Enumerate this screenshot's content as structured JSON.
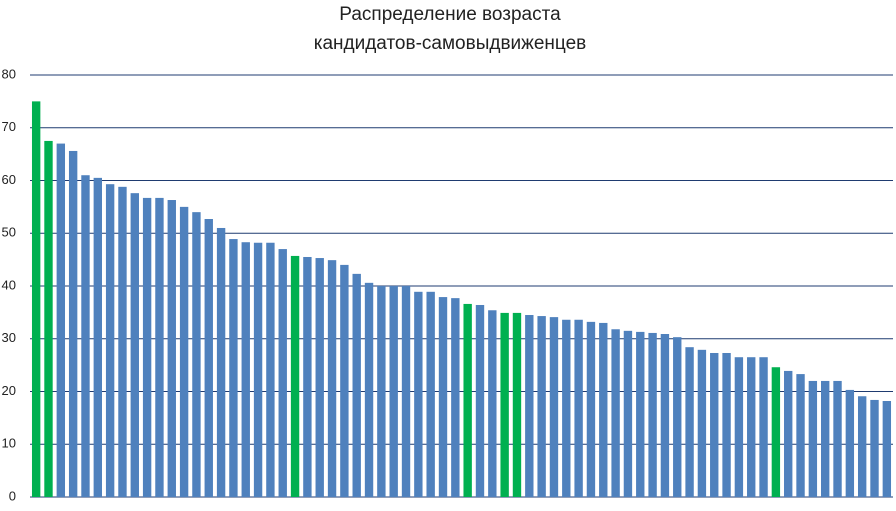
{
  "chart_data": {
    "type": "bar",
    "title": [
      "Распределение возраста",
      "кандидатов-самовыдвиженцев"
    ],
    "categories": [
      null,
      null,
      null,
      null,
      null,
      null,
      null,
      null,
      null,
      null,
      null,
      null,
      null,
      null,
      null,
      null,
      null,
      null,
      null,
      null,
      null,
      null,
      null,
      null,
      null,
      null,
      null,
      null,
      null,
      null,
      null,
      null,
      null,
      null,
      null,
      null,
      null,
      null,
      null,
      null,
      null,
      null,
      null,
      null,
      null,
      null,
      null,
      null,
      null,
      null,
      null,
      null,
      null,
      null,
      null,
      null,
      null,
      null,
      null,
      null,
      null,
      null,
      null,
      null,
      null,
      null,
      null,
      null,
      null,
      null
    ],
    "values": [
      75,
      67.5,
      67,
      65.6,
      61,
      60.5,
      59.3,
      58.8,
      57.6,
      56.7,
      56.7,
      56.3,
      55,
      54,
      52.7,
      51,
      48.9,
      48.3,
      48.2,
      48.2,
      47,
      45.7,
      45.5,
      45.3,
      44.9,
      44,
      42.3,
      40.6,
      40,
      40,
      40,
      38.9,
      38.9,
      37.9,
      37.7,
      36.6,
      36.4,
      35.4,
      34.9,
      34.9,
      34.5,
      34.3,
      34.1,
      33.6,
      33.6,
      33.2,
      33,
      31.8,
      31.5,
      31.3,
      31.1,
      30.9,
      30.3,
      28.4,
      27.9,
      27.3,
      27.3,
      26.5,
      26.5,
      26.5,
      24.6,
      23.9,
      23.3,
      22,
      22,
      22,
      20.3,
      19.1,
      18.4,
      18.2
    ],
    "colors": [
      "#00b050",
      "#00b050",
      "#4f81bd",
      "#4f81bd",
      "#4f81bd",
      "#4f81bd",
      "#4f81bd",
      "#4f81bd",
      "#4f81bd",
      "#4f81bd",
      "#4f81bd",
      "#4f81bd",
      "#4f81bd",
      "#4f81bd",
      "#4f81bd",
      "#4f81bd",
      "#4f81bd",
      "#4f81bd",
      "#4f81bd",
      "#4f81bd",
      "#4f81bd",
      "#00b050",
      "#4f81bd",
      "#4f81bd",
      "#4f81bd",
      "#4f81bd",
      "#4f81bd",
      "#4f81bd",
      "#4f81bd",
      "#4f81bd",
      "#4f81bd",
      "#4f81bd",
      "#4f81bd",
      "#4f81bd",
      "#4f81bd",
      "#00b050",
      "#4f81bd",
      "#4f81bd",
      "#00b050",
      "#00b050",
      "#4f81bd",
      "#4f81bd",
      "#4f81bd",
      "#4f81bd",
      "#4f81bd",
      "#4f81bd",
      "#4f81bd",
      "#4f81bd",
      "#4f81bd",
      "#4f81bd",
      "#4f81bd",
      "#4f81bd",
      "#4f81bd",
      "#4f81bd",
      "#4f81bd",
      "#4f81bd",
      "#4f81bd",
      "#4f81bd",
      "#4f81bd",
      "#4f81bd",
      "#00b050",
      "#4f81bd",
      "#4f81bd",
      "#4f81bd",
      "#4f81bd",
      "#4f81bd",
      "#4f81bd",
      "#4f81bd",
      "#4f81bd",
      "#4f81bd"
    ],
    "ylim": [
      0,
      80
    ],
    "yticks": [
      0,
      10,
      20,
      30,
      40,
      50,
      60,
      70,
      80
    ],
    "grid": true
  }
}
